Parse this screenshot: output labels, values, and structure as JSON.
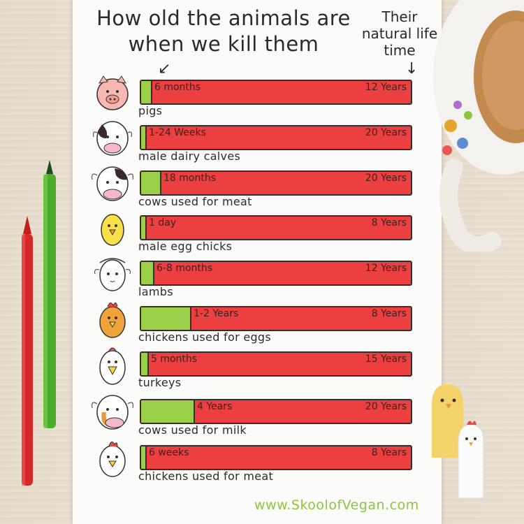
{
  "title": "How old the animals are when we kill them",
  "subtitle": "Their natural life time",
  "website": "www.SkoolofVegan.com",
  "colors": {
    "killed_age": "#9ad048",
    "natural_life": "#ec3f3f",
    "website": "#8cc63f"
  },
  "chart_data": {
    "type": "bar",
    "orientation": "horizontal",
    "series_labels": [
      "How old the animals are when we kill them",
      "Their natural life time"
    ],
    "rows": [
      {
        "animal": "pigs",
        "icon": "pig-icon",
        "killed_label": "6 months",
        "lifespan_label": "12 Years",
        "killed_years": 0.5,
        "lifespan_years": 12
      },
      {
        "animal": "male dairy calves",
        "icon": "calf-icon",
        "killed_label": "1-24 Weeks",
        "lifespan_label": "20 Years",
        "killed_years": 0.25,
        "lifespan_years": 20
      },
      {
        "animal": "cows used for meat",
        "icon": "cow-icon",
        "killed_label": "18 months",
        "lifespan_label": "20 Years",
        "killed_years": 1.5,
        "lifespan_years": 20
      },
      {
        "animal": "male egg chicks",
        "icon": "chick-icon",
        "killed_label": "1 day",
        "lifespan_label": "8 Years",
        "killed_years": 0.003,
        "lifespan_years": 8
      },
      {
        "animal": "lambs",
        "icon": "lamb-icon",
        "killed_label": "6-8 months",
        "lifespan_label": "12 Years",
        "killed_years": 0.6,
        "lifespan_years": 12
      },
      {
        "animal": "chickens used for eggs",
        "icon": "hen-icon",
        "killed_label": "1-2 Years",
        "lifespan_label": "8 Years",
        "killed_years": 1.5,
        "lifespan_years": 8
      },
      {
        "animal": "turkeys",
        "icon": "turkey-icon",
        "killed_label": "5 months",
        "lifespan_label": "15 Years",
        "killed_years": 0.42,
        "lifespan_years": 15
      },
      {
        "animal": "cows used for milk",
        "icon": "dairy-cow-icon",
        "killed_label": "4 Years",
        "lifespan_label": "20 Years",
        "killed_years": 4,
        "lifespan_years": 20
      },
      {
        "animal": "chickens used for meat",
        "icon": "broiler-chicken-icon",
        "killed_label": "6 weeks",
        "lifespan_label": "8 Years",
        "killed_years": 0.115,
        "lifespan_years": 8
      }
    ]
  }
}
